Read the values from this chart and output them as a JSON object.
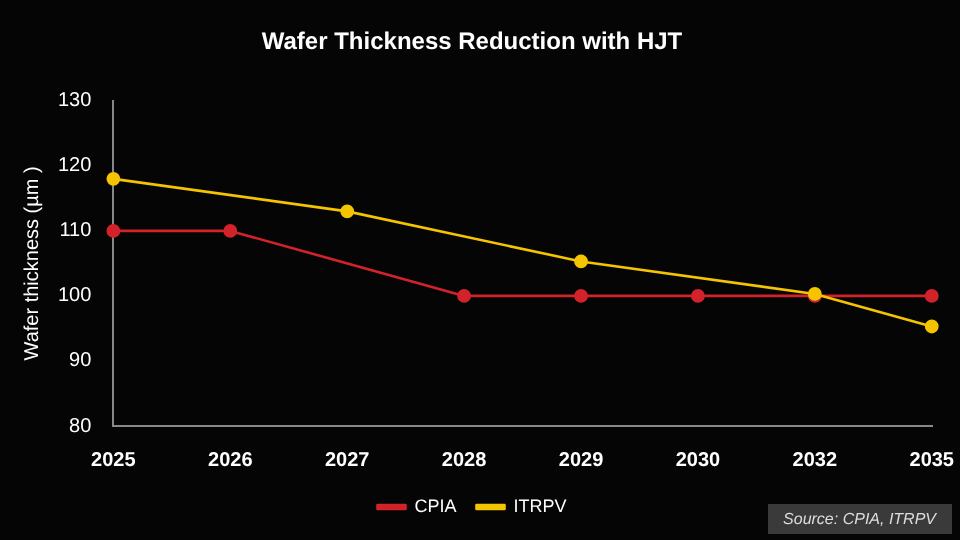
{
  "chart_data": {
    "type": "line",
    "title": "Wafer Thickness Reduction with HJT",
    "ylabel": "Wafer thickness (µm )",
    "categories": [
      "2025",
      "2026",
      "2027",
      "2028",
      "2029",
      "2030",
      "2032",
      "2035"
    ],
    "series": [
      {
        "name": "CPIA",
        "color": "#d2232a",
        "values": [
          110,
          110,
          null,
          100,
          100,
          100,
          100,
          100
        ]
      },
      {
        "name": "ITRPV",
        "color": "#f5c400",
        "values": [
          118,
          null,
          113,
          null,
          105.3,
          null,
          100.3,
          95.3
        ]
      }
    ],
    "ylim": [
      80,
      130
    ],
    "yticks": [
      80,
      90,
      100,
      110,
      120,
      130
    ],
    "grid": false,
    "legend": "bottom",
    "marker": "circle",
    "line_style": "solid",
    "annotations": [
      "Source: CPIA, ITRPV"
    ]
  }
}
